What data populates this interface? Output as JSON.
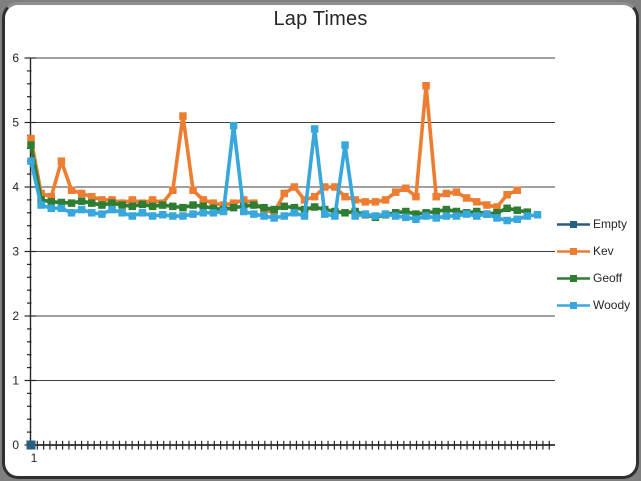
{
  "chart_data": {
    "type": "line",
    "title": "Lap Times",
    "xlabel": "",
    "ylabel": "",
    "x_axis": {
      "first_tick_label": "1"
    },
    "y_axis": {
      "min": 0,
      "max": 6,
      "ticks": [
        0,
        1,
        2,
        3,
        4,
        5,
        6
      ],
      "minor_step": 0.2
    },
    "grid": true,
    "legend_position": "right",
    "series": [
      {
        "name": "Empty",
        "color": "#255E7E",
        "values": [
          0
        ]
      },
      {
        "name": "Kev",
        "color": "#ED7D31",
        "values": [
          4.75,
          3.9,
          3.85,
          4.4,
          3.95,
          3.9,
          3.85,
          3.8,
          3.8,
          3.75,
          3.8,
          3.75,
          3.8,
          3.75,
          3.95,
          5.1,
          3.95,
          3.8,
          3.75,
          3.72,
          3.75,
          3.8,
          3.75,
          3.65,
          3.6,
          3.9,
          4.0,
          3.8,
          3.85,
          4.0,
          4.0,
          3.85,
          3.8,
          3.77,
          3.77,
          3.8,
          3.92,
          3.98,
          3.85,
          5.57,
          3.85,
          3.9,
          3.92,
          3.83,
          3.77,
          3.72,
          3.69,
          3.88,
          3.95
        ]
      },
      {
        "name": "Geoff",
        "color": "#2E7D32",
        "values": [
          4.65,
          3.8,
          3.77,
          3.76,
          3.75,
          3.78,
          3.75,
          3.72,
          3.75,
          3.72,
          3.7,
          3.73,
          3.7,
          3.72,
          3.7,
          3.68,
          3.72,
          3.7,
          3.67,
          3.65,
          3.68,
          3.7,
          3.72,
          3.68,
          3.65,
          3.7,
          3.68,
          3.65,
          3.69,
          3.65,
          3.62,
          3.6,
          3.62,
          3.57,
          3.53,
          3.57,
          3.6,
          3.62,
          3.58,
          3.6,
          3.62,
          3.65,
          3.62,
          3.6,
          3.62,
          3.58,
          3.6,
          3.67,
          3.64,
          3.61
        ]
      },
      {
        "name": "Woody",
        "color": "#38A7DC",
        "values": [
          4.4,
          3.72,
          3.67,
          3.67,
          3.6,
          3.65,
          3.6,
          3.58,
          3.65,
          3.6,
          3.55,
          3.6,
          3.55,
          3.57,
          3.55,
          3.55,
          3.58,
          3.6,
          3.6,
          3.62,
          4.95,
          3.62,
          3.58,
          3.55,
          3.52,
          3.55,
          3.6,
          3.55,
          4.9,
          3.58,
          3.55,
          4.65,
          3.55,
          3.58,
          3.55,
          3.58,
          3.55,
          3.53,
          3.5,
          3.55,
          3.52,
          3.55,
          3.55,
          3.58,
          3.55,
          3.58,
          3.52,
          3.48,
          3.5,
          3.55,
          3.57
        ]
      }
    ],
    "colors": {
      "background": "#7f7f7f",
      "card": "#ffffff",
      "card_border": "#2f2f2f",
      "gridline": "#404040",
      "axis": "#262626",
      "text": "#262626"
    }
  }
}
